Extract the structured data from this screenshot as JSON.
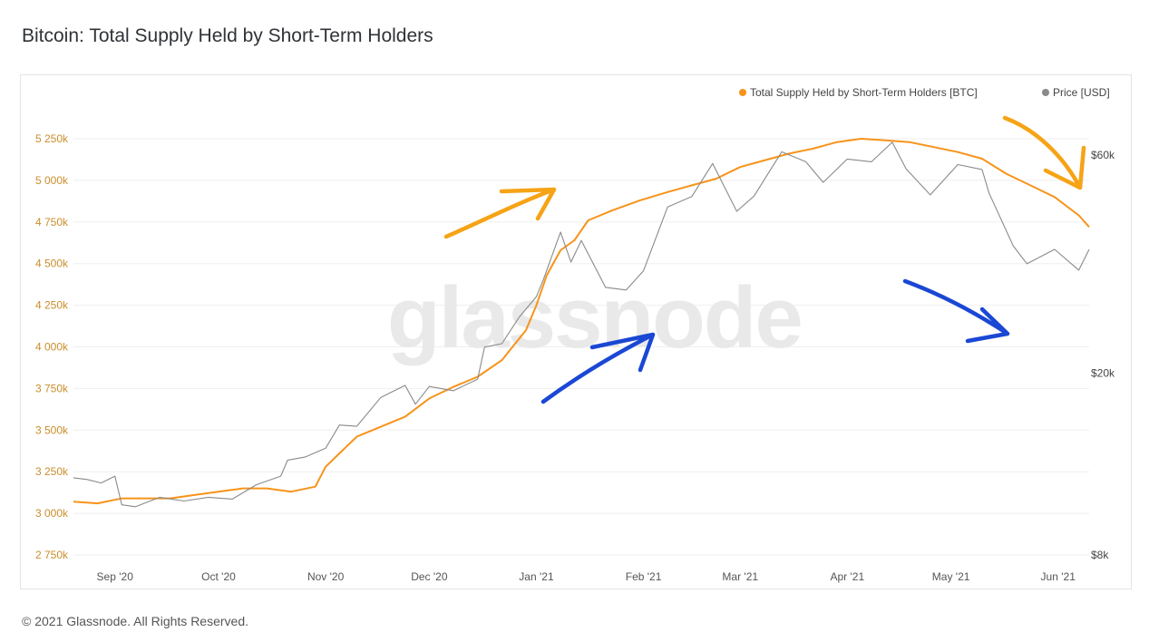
{
  "page": {
    "title": "Bitcoin: Total Supply Held by Short-Term Holders",
    "footer": "© 2021 Glassnode. All Rights Reserved.",
    "watermark": "glassnode"
  },
  "chart_data": {
    "type": "line",
    "title": "Bitcoin: Total Supply Held by Short-Term Holders",
    "legend_position": "top-right",
    "grid": true,
    "x_ticks": [
      "Sep '20",
      "Oct '20",
      "Nov '20",
      "Dec '20",
      "Jan '21",
      "Feb '21",
      "Mar '21",
      "Apr '21",
      "May '21",
      "Jun '21"
    ],
    "x_range": [
      "2020-08-20",
      "2021-06-10"
    ],
    "y_left": {
      "ticks": [
        "2 750k",
        "3 000k",
        "3 250k",
        "3 500k",
        "3 750k",
        "4 000k",
        "4 250k",
        "4 500k",
        "4 750k",
        "5 000k",
        "5 250k"
      ],
      "range": [
        2750000,
        5250000
      ]
    },
    "y_right": {
      "scale": "log",
      "ticks": [
        "$8k",
        "$20k",
        "$60k"
      ],
      "tick_values": [
        8000,
        20000,
        60000
      ]
    },
    "series": [
      {
        "name": "Total Supply Held by Short-Term Holders [BTC]",
        "axis": "left",
        "color": "#f7931a",
        "points": [
          [
            "2020-08-20",
            3070000
          ],
          [
            "2020-08-27",
            3060000
          ],
          [
            "2020-09-03",
            3090000
          ],
          [
            "2020-09-10",
            3090000
          ],
          [
            "2020-09-17",
            3090000
          ],
          [
            "2020-09-24",
            3110000
          ],
          [
            "2020-10-01",
            3130000
          ],
          [
            "2020-10-08",
            3150000
          ],
          [
            "2020-10-15",
            3150000
          ],
          [
            "2020-10-22",
            3130000
          ],
          [
            "2020-10-29",
            3160000
          ],
          [
            "2020-11-01",
            3280000
          ],
          [
            "2020-11-05",
            3360000
          ],
          [
            "2020-11-10",
            3460000
          ],
          [
            "2020-11-17",
            3520000
          ],
          [
            "2020-11-24",
            3580000
          ],
          [
            "2020-12-01",
            3690000
          ],
          [
            "2020-12-08",
            3760000
          ],
          [
            "2020-12-15",
            3820000
          ],
          [
            "2020-12-22",
            3920000
          ],
          [
            "2020-12-29",
            4100000
          ],
          [
            "2021-01-01",
            4250000
          ],
          [
            "2021-01-04",
            4430000
          ],
          [
            "2021-01-08",
            4580000
          ],
          [
            "2021-01-12",
            4640000
          ],
          [
            "2021-01-16",
            4760000
          ],
          [
            "2021-01-23",
            4820000
          ],
          [
            "2021-01-31",
            4880000
          ],
          [
            "2021-02-08",
            4930000
          ],
          [
            "2021-02-15",
            4970000
          ],
          [
            "2021-02-22",
            5010000
          ],
          [
            "2021-03-01",
            5080000
          ],
          [
            "2021-03-08",
            5120000
          ],
          [
            "2021-03-15",
            5160000
          ],
          [
            "2021-03-22",
            5190000
          ],
          [
            "2021-03-29",
            5230000
          ],
          [
            "2021-04-05",
            5250000
          ],
          [
            "2021-04-12",
            5240000
          ],
          [
            "2021-04-19",
            5230000
          ],
          [
            "2021-04-26",
            5200000
          ],
          [
            "2021-05-03",
            5170000
          ],
          [
            "2021-05-10",
            5130000
          ],
          [
            "2021-05-17",
            5040000
          ],
          [
            "2021-05-24",
            4970000
          ],
          [
            "2021-05-31",
            4900000
          ],
          [
            "2021-06-07",
            4790000
          ],
          [
            "2021-06-10",
            4720000
          ]
        ]
      },
      {
        "name": "Price [USD]",
        "axis": "right",
        "color": "#8a8a8a",
        "points": [
          [
            "2020-08-20",
            11800
          ],
          [
            "2020-08-24",
            11700
          ],
          [
            "2020-08-28",
            11500
          ],
          [
            "2020-09-01",
            11900
          ],
          [
            "2020-09-03",
            10300
          ],
          [
            "2020-09-07",
            10200
          ],
          [
            "2020-09-14",
            10700
          ],
          [
            "2020-09-21",
            10500
          ],
          [
            "2020-09-28",
            10700
          ],
          [
            "2020-10-05",
            10600
          ],
          [
            "2020-10-12",
            11400
          ],
          [
            "2020-10-19",
            11900
          ],
          [
            "2020-10-21",
            12900
          ],
          [
            "2020-10-26",
            13100
          ],
          [
            "2020-11-01",
            13700
          ],
          [
            "2020-11-05",
            15400
          ],
          [
            "2020-11-10",
            15300
          ],
          [
            "2020-11-17",
            17700
          ],
          [
            "2020-11-24",
            18800
          ],
          [
            "2020-11-27",
            17100
          ],
          [
            "2020-12-01",
            18700
          ],
          [
            "2020-12-08",
            18300
          ],
          [
            "2020-12-15",
            19400
          ],
          [
            "2020-12-17",
            22800
          ],
          [
            "2020-12-22",
            23200
          ],
          [
            "2020-12-27",
            26500
          ],
          [
            "2021-01-01",
            29400
          ],
          [
            "2021-01-03",
            32000
          ],
          [
            "2021-01-08",
            40700
          ],
          [
            "2021-01-11",
            35000
          ],
          [
            "2021-01-14",
            39000
          ],
          [
            "2021-01-21",
            30800
          ],
          [
            "2021-01-27",
            30400
          ],
          [
            "2021-02-01",
            33500
          ],
          [
            "2021-02-08",
            46200
          ],
          [
            "2021-02-15",
            48700
          ],
          [
            "2021-02-21",
            57500
          ],
          [
            "2021-02-28",
            45200
          ],
          [
            "2021-03-05",
            48800
          ],
          [
            "2021-03-13",
            61000
          ],
          [
            "2021-03-20",
            58000
          ],
          [
            "2021-03-25",
            52300
          ],
          [
            "2021-04-01",
            58800
          ],
          [
            "2021-04-08",
            58000
          ],
          [
            "2021-04-14",
            64000
          ],
          [
            "2021-04-18",
            56000
          ],
          [
            "2021-04-25",
            49100
          ],
          [
            "2021-05-03",
            57200
          ],
          [
            "2021-05-10",
            55800
          ],
          [
            "2021-05-12",
            49600
          ],
          [
            "2021-05-19",
            38000
          ],
          [
            "2021-05-23",
            34700
          ],
          [
            "2021-05-31",
            37300
          ],
          [
            "2021-06-07",
            33600
          ],
          [
            "2021-06-10",
            37300
          ]
        ]
      }
    ]
  },
  "annotations": {
    "arrow_color_orange": "#f6a316",
    "arrow_color_blue": "#1a47d4"
  }
}
